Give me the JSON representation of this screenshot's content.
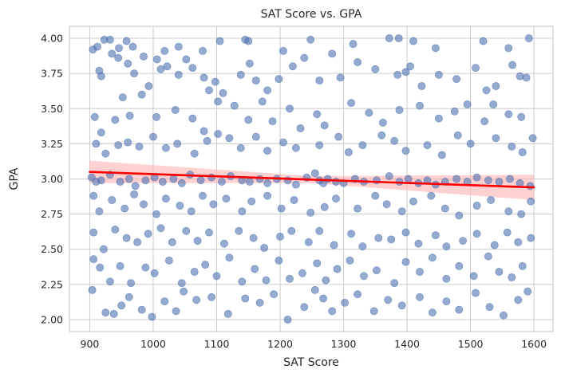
{
  "chart_data": {
    "type": "scatter",
    "title": "SAT Score vs. GPA",
    "xlabel": "SAT Score",
    "ylabel": "GPA",
    "xlim": [
      868,
      1630
    ],
    "ylim": [
      1.915,
      4.085
    ],
    "xticks": [
      900,
      1000,
      1100,
      1200,
      1300,
      1400,
      1500,
      1600
    ],
    "yticks": [
      2.0,
      2.25,
      2.5,
      2.75,
      3.0,
      3.25,
      3.5,
      3.75,
      4.0
    ],
    "grid": true,
    "regression": {
      "x_range": [
        900,
        1600
      ],
      "y_at_start": 3.05,
      "y_at_end": 2.94,
      "ci_at_start": [
        2.97,
        3.13
      ],
      "ci_at_mid": [
        2.97,
        3.02
      ],
      "ci_at_end": [
        2.85,
        3.03
      ]
    },
    "colors": {
      "points": "#4c72b0",
      "regression_line": "#ff0000",
      "confidence_band": "#ffb3b3"
    },
    "points": [
      [
        905,
        3.92
      ],
      [
        912,
        3.94
      ],
      [
        923,
        3.99
      ],
      [
        932,
        3.99
      ],
      [
        946,
        3.93
      ],
      [
        958,
        3.98
      ],
      [
        968,
        3.94
      ],
      [
        985,
        3.87
      ],
      [
        1006,
        3.85
      ],
      [
        1018,
        3.91
      ],
      [
        1040,
        3.94
      ],
      [
        1052,
        3.85
      ],
      [
        1078,
        3.91
      ],
      [
        1105,
        3.98
      ],
      [
        1145,
        3.99
      ],
      [
        1150,
        3.98
      ],
      [
        1205,
        3.91
      ],
      [
        1248,
        3.99
      ],
      [
        1282,
        3.89
      ],
      [
        1315,
        3.96
      ],
      [
        1372,
        4.0
      ],
      [
        1387,
        4.0
      ],
      [
        1410,
        3.98
      ],
      [
        1445,
        3.93
      ],
      [
        1520,
        3.98
      ],
      [
        1560,
        3.93
      ],
      [
        1592,
        4.0
      ],
      [
        915,
        3.77
      ],
      [
        918,
        3.73
      ],
      [
        935,
        3.89
      ],
      [
        945,
        3.86
      ],
      [
        960,
        3.82
      ],
      [
        970,
        3.75
      ],
      [
        993,
        3.66
      ],
      [
        1012,
        3.78
      ],
      [
        1022,
        3.8
      ],
      [
        1040,
        3.74
      ],
      [
        1062,
        3.79
      ],
      [
        1080,
        3.72
      ],
      [
        1088,
        3.63
      ],
      [
        1098,
        3.69
      ],
      [
        1110,
        3.61
      ],
      [
        1138,
        3.74
      ],
      [
        1152,
        3.82
      ],
      [
        1162,
        3.7
      ],
      [
        1180,
        3.63
      ],
      [
        1198,
        3.71
      ],
      [
        1220,
        3.8
      ],
      [
        1238,
        3.86
      ],
      [
        1262,
        3.7
      ],
      [
        1295,
        3.72
      ],
      [
        1322,
        3.83
      ],
      [
        1350,
        3.78
      ],
      [
        1385,
        3.74
      ],
      [
        1398,
        3.76
      ],
      [
        1405,
        3.8
      ],
      [
        1423,
        3.66
      ],
      [
        1450,
        3.74
      ],
      [
        1478,
        3.71
      ],
      [
        1508,
        3.79
      ],
      [
        1525,
        3.63
      ],
      [
        1540,
        3.66
      ],
      [
        1566,
        3.81
      ],
      [
        1578,
        3.73
      ],
      [
        1588,
        3.72
      ],
      [
        908,
        3.44
      ],
      [
        918,
        3.33
      ],
      [
        940,
        3.42
      ],
      [
        952,
        3.58
      ],
      [
        963,
        3.45
      ],
      [
        982,
        3.6
      ],
      [
        1005,
        3.44
      ],
      [
        1035,
        3.49
      ],
      [
        1062,
        3.43
      ],
      [
        1080,
        3.34
      ],
      [
        1102,
        3.55
      ],
      [
        1128,
        3.52
      ],
      [
        1150,
        3.42
      ],
      [
        1172,
        3.55
      ],
      [
        1188,
        3.41
      ],
      [
        1215,
        3.5
      ],
      [
        1232,
        3.36
      ],
      [
        1258,
        3.46
      ],
      [
        1270,
        3.38
      ],
      [
        1312,
        3.54
      ],
      [
        1340,
        3.47
      ],
      [
        1362,
        3.4
      ],
      [
        1388,
        3.49
      ],
      [
        1420,
        3.52
      ],
      [
        1450,
        3.43
      ],
      [
        1475,
        3.48
      ],
      [
        1495,
        3.53
      ],
      [
        1522,
        3.41
      ],
      [
        1536,
        3.53
      ],
      [
        1560,
        3.46
      ],
      [
        1580,
        3.44
      ],
      [
        910,
        3.25
      ],
      [
        925,
        3.18
      ],
      [
        945,
        3.24
      ],
      [
        960,
        3.26
      ],
      [
        978,
        3.23
      ],
      [
        1000,
        3.3
      ],
      [
        1020,
        3.22
      ],
      [
        1038,
        3.25
      ],
      [
        1065,
        3.18
      ],
      [
        1085,
        3.27
      ],
      [
        1102,
        3.32
      ],
      [
        1120,
        3.29
      ],
      [
        1138,
        3.22
      ],
      [
        1162,
        3.3
      ],
      [
        1180,
        3.2
      ],
      [
        1205,
        3.26
      ],
      [
        1225,
        3.22
      ],
      [
        1262,
        3.24
      ],
      [
        1292,
        3.3
      ],
      [
        1308,
        3.19
      ],
      [
        1330,
        3.24
      ],
      [
        1360,
        3.31
      ],
      [
        1380,
        3.27
      ],
      [
        1398,
        3.2
      ],
      [
        1432,
        3.24
      ],
      [
        1455,
        3.17
      ],
      [
        1480,
        3.31
      ],
      [
        1500,
        3.25
      ],
      [
        1540,
        3.29
      ],
      [
        1565,
        3.23
      ],
      [
        1582,
        3.19
      ],
      [
        1598,
        3.29
      ],
      [
        903,
        3.01
      ],
      [
        910,
        2.98
      ],
      [
        918,
        2.99
      ],
      [
        932,
        3.03
      ],
      [
        948,
        2.98
      ],
      [
        962,
        3.0
      ],
      [
        972,
        2.95
      ],
      [
        988,
        2.99
      ],
      [
        1002,
        3.01
      ],
      [
        1015,
        2.98
      ],
      [
        1032,
        3.0
      ],
      [
        1045,
        2.97
      ],
      [
        1058,
        3.03
      ],
      [
        1075,
        2.99
      ],
      [
        1092,
        3.01
      ],
      [
        1108,
        2.98
      ],
      [
        1122,
        3.02
      ],
      [
        1140,
        2.99
      ],
      [
        1152,
        2.98
      ],
      [
        1168,
        3.0
      ],
      [
        1180,
        2.97
      ],
      [
        1195,
        3.0
      ],
      [
        1212,
        2.99
      ],
      [
        1225,
        2.96
      ],
      [
        1242,
        3.01
      ],
      [
        1255,
        3.04
      ],
      [
        1262,
        2.99
      ],
      [
        1268,
        2.97
      ],
      [
        1275,
        3.0
      ],
      [
        1288,
        2.98
      ],
      [
        1300,
        2.97
      ],
      [
        1318,
        3.0
      ],
      [
        1332,
        2.98
      ],
      [
        1352,
        2.99
      ],
      [
        1372,
        3.02
      ],
      [
        1388,
        2.98
      ],
      [
        1402,
        3.0
      ],
      [
        1418,
        2.97
      ],
      [
        1432,
        2.99
      ],
      [
        1445,
        2.96
      ],
      [
        1460,
        2.98
      ],
      [
        1478,
        3.0
      ],
      [
        1495,
        2.98
      ],
      [
        1510,
        3.01
      ],
      [
        1528,
        2.99
      ],
      [
        1545,
        2.98
      ],
      [
        1562,
        3.0
      ],
      [
        1578,
        2.97
      ],
      [
        1594,
        2.95
      ],
      [
        906,
        2.88
      ],
      [
        915,
        2.77
      ],
      [
        935,
        2.85
      ],
      [
        955,
        2.79
      ],
      [
        970,
        2.89
      ],
      [
        985,
        2.82
      ],
      [
        1005,
        2.75
      ],
      [
        1020,
        2.86
      ],
      [
        1042,
        2.81
      ],
      [
        1060,
        2.77
      ],
      [
        1078,
        2.88
      ],
      [
        1095,
        2.82
      ],
      [
        1115,
        2.86
      ],
      [
        1140,
        2.77
      ],
      [
        1155,
        2.84
      ],
      [
        1180,
        2.88
      ],
      [
        1202,
        2.79
      ],
      [
        1222,
        2.85
      ],
      [
        1248,
        2.76
      ],
      [
        1270,
        2.8
      ],
      [
        1288,
        2.86
      ],
      [
        1322,
        2.79
      ],
      [
        1350,
        2.88
      ],
      [
        1368,
        2.82
      ],
      [
        1392,
        2.77
      ],
      [
        1410,
        2.84
      ],
      [
        1438,
        2.88
      ],
      [
        1460,
        2.79
      ],
      [
        1482,
        2.74
      ],
      [
        1510,
        2.81
      ],
      [
        1532,
        2.85
      ],
      [
        1560,
        2.77
      ],
      [
        1580,
        2.75
      ],
      [
        1595,
        2.84
      ],
      [
        906,
        2.62
      ],
      [
        922,
        2.5
      ],
      [
        940,
        2.64
      ],
      [
        958,
        2.58
      ],
      [
        975,
        2.55
      ],
      [
        992,
        2.61
      ],
      [
        1012,
        2.65
      ],
      [
        1030,
        2.55
      ],
      [
        1052,
        2.63
      ],
      [
        1070,
        2.56
      ],
      [
        1088,
        2.62
      ],
      [
        1112,
        2.54
      ],
      [
        1135,
        2.63
      ],
      [
        1158,
        2.58
      ],
      [
        1175,
        2.51
      ],
      [
        1200,
        2.59
      ],
      [
        1218,
        2.63
      ],
      [
        1245,
        2.55
      ],
      [
        1262,
        2.63
      ],
      [
        1285,
        2.53
      ],
      [
        1312,
        2.61
      ],
      [
        1330,
        2.52
      ],
      [
        1355,
        2.58
      ],
      [
        1375,
        2.57
      ],
      [
        1398,
        2.62
      ],
      [
        1418,
        2.54
      ],
      [
        1445,
        2.6
      ],
      [
        1462,
        2.52
      ],
      [
        1488,
        2.56
      ],
      [
        1510,
        2.61
      ],
      [
        1538,
        2.53
      ],
      [
        1558,
        2.62
      ],
      [
        1575,
        2.55
      ],
      [
        1595,
        2.58
      ],
      [
        906,
        2.43
      ],
      [
        916,
        2.37
      ],
      [
        932,
        2.27
      ],
      [
        948,
        2.38
      ],
      [
        965,
        2.26
      ],
      [
        988,
        2.37
      ],
      [
        1002,
        2.33
      ],
      [
        1025,
        2.42
      ],
      [
        1045,
        2.26
      ],
      [
        1065,
        2.34
      ],
      [
        1082,
        2.39
      ],
      [
        1100,
        2.31
      ],
      [
        1120,
        2.44
      ],
      [
        1140,
        2.27
      ],
      [
        1160,
        2.36
      ],
      [
        1178,
        2.28
      ],
      [
        1198,
        2.42
      ],
      [
        1215,
        2.29
      ],
      [
        1235,
        2.33
      ],
      [
        1258,
        2.4
      ],
      [
        1272,
        2.28
      ],
      [
        1290,
        2.36
      ],
      [
        1310,
        2.42
      ],
      [
        1332,
        2.31
      ],
      [
        1352,
        2.35
      ],
      [
        1380,
        2.26
      ],
      [
        1398,
        2.41
      ],
      [
        1420,
        2.34
      ],
      [
        1440,
        2.44
      ],
      [
        1462,
        2.29
      ],
      [
        1482,
        2.38
      ],
      [
        1505,
        2.31
      ],
      [
        1528,
        2.45
      ],
      [
        1545,
        2.34
      ],
      [
        1565,
        2.3
      ],
      [
        1582,
        2.38
      ],
      [
        904,
        2.21
      ],
      [
        925,
        2.05
      ],
      [
        938,
        2.04
      ],
      [
        950,
        2.1
      ],
      [
        962,
        2.16
      ],
      [
        982,
        2.07
      ],
      [
        998,
        2.02
      ],
      [
        1018,
        2.13
      ],
      [
        1036,
        2.06
      ],
      [
        1048,
        2.2
      ],
      [
        1068,
        2.14
      ],
      [
        1092,
        2.16
      ],
      [
        1118,
        2.04
      ],
      [
        1145,
        2.15
      ],
      [
        1168,
        2.12
      ],
      [
        1190,
        2.18
      ],
      [
        1212,
        2.0
      ],
      [
        1238,
        2.09
      ],
      [
        1255,
        2.21
      ],
      [
        1268,
        2.15
      ],
      [
        1282,
        2.06
      ],
      [
        1302,
        2.12
      ],
      [
        1322,
        2.18
      ],
      [
        1348,
        2.06
      ],
      [
        1370,
        2.14
      ],
      [
        1392,
        2.1
      ],
      [
        1420,
        2.16
      ],
      [
        1440,
        2.05
      ],
      [
        1462,
        2.13
      ],
      [
        1482,
        2.07
      ],
      [
        1508,
        2.19
      ],
      [
        1530,
        2.09
      ],
      [
        1552,
        2.03
      ],
      [
        1575,
        2.14
      ],
      [
        1590,
        2.2
      ]
    ]
  }
}
